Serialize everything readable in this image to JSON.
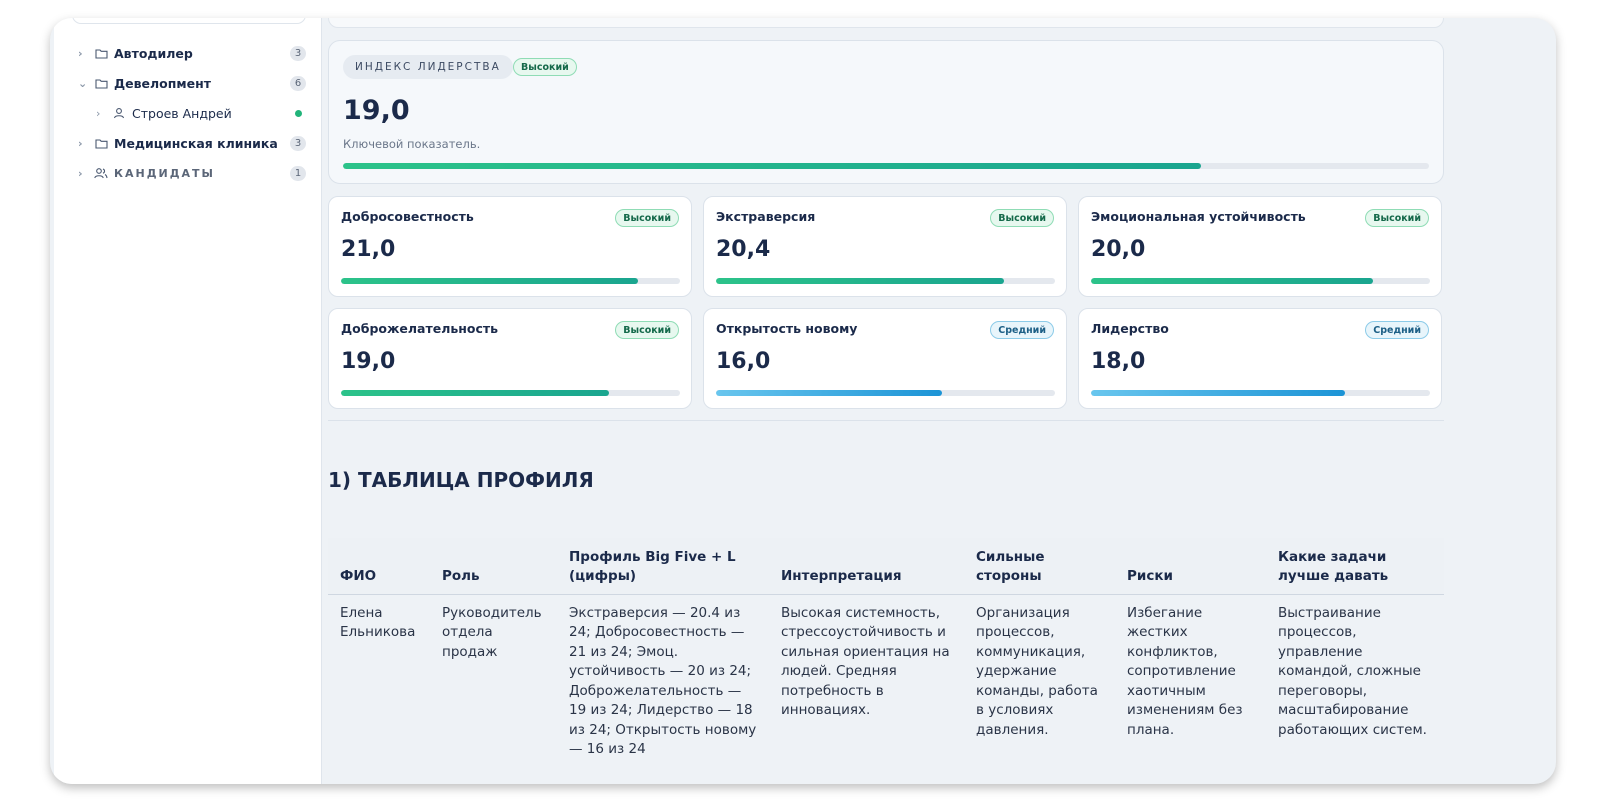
{
  "sidebar": {
    "items": [
      {
        "label": "Автодилер",
        "count": "3",
        "expanded": false,
        "icon": "folder-icon"
      },
      {
        "label": "Девелопмент",
        "count": "6",
        "expanded": true,
        "icon": "folder-icon"
      },
      {
        "label": "Строев Андрей",
        "status": "online",
        "icon": "user-icon"
      },
      {
        "label": "Медицинская клиника",
        "count": "3",
        "expanded": false,
        "icon": "folder-icon"
      },
      {
        "label": "КАНДИДАТЫ",
        "count": "1",
        "expanded": false,
        "icon": "users-icon"
      }
    ]
  },
  "leadership": {
    "tag": "ИНДЕКС ЛИДЕРСТВА",
    "badge": "Высокий",
    "value": "19,0",
    "description": "Ключевой показатель.",
    "progress": 0.79
  },
  "metrics": [
    {
      "title": "Добросовестность",
      "badge": "Высокий",
      "level": "high",
      "value": "21,0",
      "progress": 0.875
    },
    {
      "title": "Экстраверсия",
      "badge": "Высокий",
      "level": "high",
      "value": "20,4",
      "progress": 0.85
    },
    {
      "title": "Эмоциональная устойчивость",
      "badge": "Высокий",
      "level": "high",
      "value": "20,0",
      "progress": 0.833
    },
    {
      "title": "Доброжелательность",
      "badge": "Высокий",
      "level": "high",
      "value": "19,0",
      "progress": 0.79
    },
    {
      "title": "Открытость новому",
      "badge": "Средний",
      "level": "mid",
      "value": "16,0",
      "progress": 0.667
    },
    {
      "title": "Лидерство",
      "badge": "Средний",
      "level": "mid",
      "value": "18,0",
      "progress": 0.75
    }
  ],
  "section": {
    "title": "1) ТАБЛИЦА ПРОФИЛЯ"
  },
  "table": {
    "headers": [
      "ФИО",
      "Роль",
      "Профиль Big Five + L (цифры)",
      "Интерпретация",
      "Сильные стороны",
      "Риски",
      "Какие задачи лучше давать"
    ],
    "rows": [
      [
        "Елена Ельникова",
        "Руководитель отдела продаж",
        "Экстраверсия — 20.4 из 24; Добросовестность — 21 из 24; Эмоц. устойчивость — 20 из 24; Доброжелательность — 19 из 24; Лидерство — 18 из 24; Открытость новому — 16 из 24",
        "Высокая системность, стрессоустойчивость и сильная ориентация на людей. Средняя потребность в инновациях.",
        "Организация процессов, коммуникация, удержание команды, работа в условиях давления.",
        "Избегание жестких конфликтов, сопротивление хаотичным изменениям без плана.",
        "Выстраивание процессов, управление командой, сложные переговоры, масштабирование работающих систем."
      ]
    ]
  },
  "colors": {
    "accent_green": "#22b47a",
    "accent_blue": "#1c94d6",
    "text": "#1b2a4a"
  }
}
